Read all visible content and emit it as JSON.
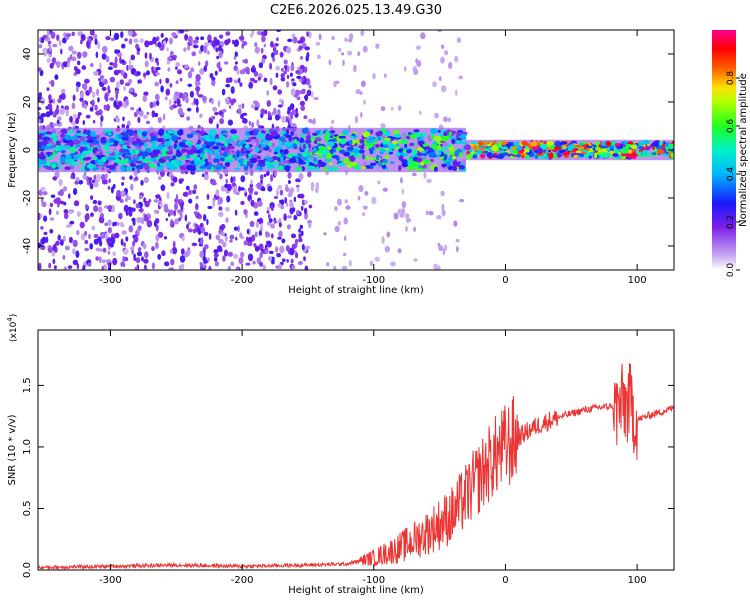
{
  "title": "C2E6.2026.025.13.49.G30",
  "colors": {
    "snr_line": "#ee3333",
    "axis": "#000000",
    "background": "#ffffff"
  },
  "chart_data": [
    {
      "type": "heatmap",
      "title": "C2E6.2026.025.13.49.G30",
      "xlabel": "Height of straight line (km)",
      "ylabel": "Frequency (Hz)",
      "xlim": [
        -355,
        128
      ],
      "ylim": [
        -50,
        50
      ],
      "x_ticks": [
        -300,
        -200,
        -100,
        0,
        100
      ],
      "y_ticks": [
        -40,
        -20,
        0,
        20,
        40
      ],
      "colorbar": {
        "label": "Normalized spectral amplitude",
        "range": [
          0.0,
          1.0
        ],
        "ticks": [
          0.0,
          0.2,
          0.4,
          0.6,
          0.8
        ],
        "tick_labels": [
          "0.0",
          "0.2",
          "0.4",
          "0.6",
          "0.8"
        ],
        "colormap": "rainbow (white to violet to blue to cyan to green to yellow to red to magenta)"
      },
      "description_segments": [
        {
          "x_range": [
            -355,
            -148
          ],
          "noise_level": 0.25,
          "center_band": [
            -8,
            8
          ],
          "band_peak": 0.4
        },
        {
          "x_range": [
            -148,
            -30
          ],
          "noise_level": 0.05,
          "center_band": [
            -8,
            8
          ],
          "band_peak": 0.55
        },
        {
          "x_range": [
            -30,
            128
          ],
          "noise_level": 0.0,
          "center_band": [
            -3,
            3
          ],
          "band_peak": 0.85
        }
      ]
    },
    {
      "type": "line",
      "xlabel": "Height of straight line (km)",
      "ylabel": "SNR (10 * v/v)",
      "multiplier_label": "(x10",
      "multiplier_exp": "4",
      "multiplier_close": ")",
      "xlim": [
        -355,
        128
      ],
      "ylim": [
        0,
        1.95
      ],
      "x_ticks": [
        -300,
        -200,
        -100,
        0,
        100
      ],
      "y_ticks": [
        0.0,
        0.5,
        1.0,
        1.5
      ],
      "y_tick_labels": [
        "0.0",
        "0.5",
        "1.0",
        "1.5"
      ],
      "x_tick_labels": [
        "-300",
        "-200",
        "-100",
        "0",
        "100"
      ],
      "series": [
        {
          "color": "#ee3333",
          "x": [
            -355,
            -300,
            -250,
            -200,
            -150,
            -120,
            -100,
            -80,
            -60,
            -40,
            -30,
            -20,
            -10,
            0,
            10,
            20,
            30,
            40,
            50,
            60,
            70,
            80,
            85,
            90,
            95,
            100,
            110,
            120,
            128
          ],
          "y": [
            0.02,
            0.03,
            0.04,
            0.03,
            0.04,
            0.05,
            0.1,
            0.18,
            0.3,
            0.45,
            0.6,
            0.75,
            0.9,
            1.0,
            1.08,
            1.15,
            1.2,
            1.24,
            1.27,
            1.3,
            1.32,
            1.33,
            1.3,
            1.35,
            1.34,
            1.22,
            1.26,
            1.29,
            1.32
          ]
        }
      ]
    }
  ]
}
